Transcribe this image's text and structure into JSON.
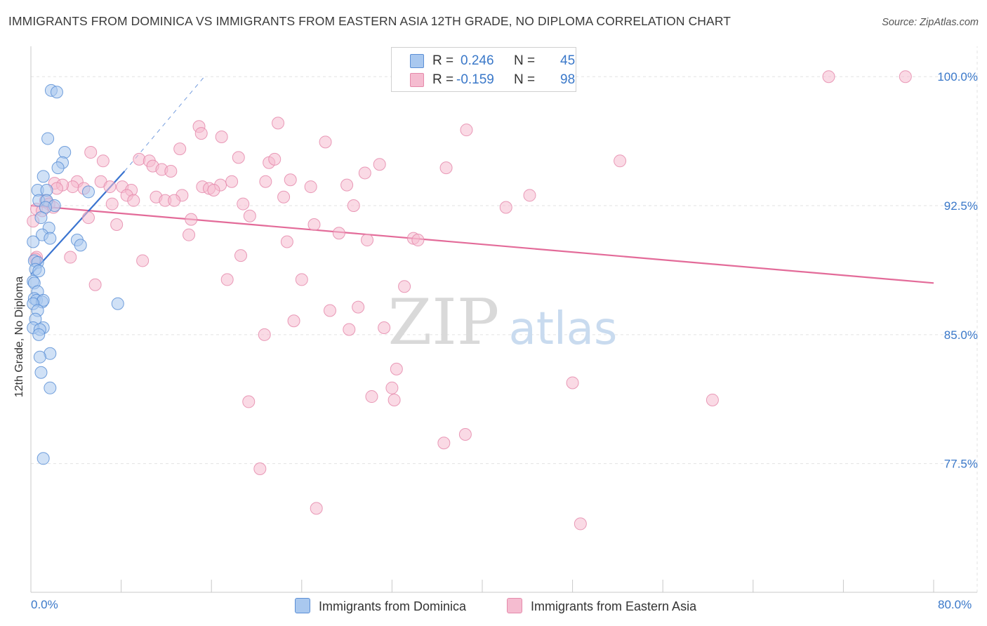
{
  "title": "IMMIGRANTS FROM DOMINICA VS IMMIGRANTS FROM EASTERN ASIA 12TH GRADE, NO DIPLOMA CORRELATION CHART",
  "source": "Source: ZipAtlas.com",
  "watermark": {
    "zip": "ZIP",
    "atlas": "atlas"
  },
  "legend": {
    "r_label": "R = ",
    "n_label": "N = ",
    "rows": [
      {
        "r": "0.246",
        "n": "45"
      },
      {
        "r": "-0.159",
        "n": "98"
      }
    ]
  },
  "colors": {
    "blue_fill": "#a9c8ef",
    "blue_stroke": "#5b8fd6",
    "blue_line": "#3a74d0",
    "pink_fill": "#f5bcd0",
    "pink_stroke": "#e58aab",
    "pink_line": "#e36b99",
    "axis_text": "#3a78c9",
    "grid": "#e3e3e3"
  },
  "chart_data": {
    "type": "scatter",
    "title": "IMMIGRANTS FROM DOMINICA VS IMMIGRANTS FROM EASTERN ASIA 12TH GRADE, NO DIPLOMA CORRELATION CHART",
    "xlabel": "",
    "ylabel": "12th Grade, No Diploma",
    "xlim": [
      0,
      80
    ],
    "ylim": [
      70.1,
      101.6
    ],
    "x_tick_labels": [
      {
        "value": 0,
        "label": "0.0%"
      },
      {
        "value": 80,
        "label": "80.0%"
      }
    ],
    "y_ticks": [
      {
        "value": 77.5,
        "label": "77.5%"
      },
      {
        "value": 85.0,
        "label": "85.0%"
      },
      {
        "value": 92.5,
        "label": "92.5%"
      },
      {
        "value": 100.0,
        "label": "100.0%"
      }
    ],
    "grid": true,
    "legend_position": "bottom",
    "series": [
      {
        "name": "Immigrants from Dominica",
        "color": "#a9c8ef",
        "r": 0.246,
        "n": 45,
        "trend": {
          "x": [
            0.0,
            8.3
          ],
          "y": [
            88.5,
            94.5
          ]
        },
        "trend_extension": {
          "x": [
            8.3,
            15.5
          ],
          "y": [
            94.5,
            100.1
          ]
        },
        "points": [
          [
            1.8,
            99.2
          ],
          [
            2.3,
            99.1
          ],
          [
            1.5,
            96.4
          ],
          [
            3.0,
            95.6
          ],
          [
            2.8,
            95.0
          ],
          [
            2.4,
            94.7
          ],
          [
            1.1,
            94.2
          ],
          [
            0.6,
            93.4
          ],
          [
            1.4,
            93.4
          ],
          [
            5.1,
            93.3
          ],
          [
            0.7,
            92.8
          ],
          [
            1.4,
            92.8
          ],
          [
            2.1,
            92.5
          ],
          [
            1.3,
            92.4
          ],
          [
            0.9,
            91.8
          ],
          [
            1.6,
            91.2
          ],
          [
            1.0,
            90.8
          ],
          [
            1.7,
            90.6
          ],
          [
            4.1,
            90.5
          ],
          [
            4.4,
            90.2
          ],
          [
            0.2,
            90.4
          ],
          [
            0.3,
            89.3
          ],
          [
            0.6,
            89.2
          ],
          [
            0.4,
            88.8
          ],
          [
            0.7,
            88.7
          ],
          [
            0.2,
            88.1
          ],
          [
            0.3,
            88.0
          ],
          [
            0.6,
            87.5
          ],
          [
            0.3,
            87.1
          ],
          [
            0.5,
            87.0
          ],
          [
            1.0,
            86.9
          ],
          [
            1.1,
            87.0
          ],
          [
            0.2,
            86.8
          ],
          [
            7.7,
            86.8
          ],
          [
            0.6,
            86.4
          ],
          [
            0.4,
            85.9
          ],
          [
            1.1,
            85.4
          ],
          [
            0.2,
            85.4
          ],
          [
            0.8,
            85.3
          ],
          [
            0.7,
            85.0
          ],
          [
            1.7,
            83.9
          ],
          [
            0.8,
            83.7
          ],
          [
            0.9,
            82.8
          ],
          [
            1.7,
            81.9
          ],
          [
            1.1,
            77.8
          ]
        ]
      },
      {
        "name": "Immigrants from Eastern Asia",
        "color": "#f5bcd0",
        "r": -0.159,
        "n": 98,
        "trend": {
          "x": [
            0.0,
            80.0
          ],
          "y": [
            92.5,
            88.0
          ]
        },
        "points": [
          [
            38.0,
            100.0
          ],
          [
            43.0,
            100.0
          ],
          [
            70.7,
            100.0
          ],
          [
            77.5,
            100.0
          ],
          [
            21.9,
            97.3
          ],
          [
            14.9,
            97.1
          ],
          [
            15.1,
            96.7
          ],
          [
            16.9,
            96.5
          ],
          [
            38.6,
            96.9
          ],
          [
            26.1,
            96.2
          ],
          [
            5.3,
            95.6
          ],
          [
            13.2,
            95.8
          ],
          [
            6.4,
            95.1
          ],
          [
            9.6,
            95.2
          ],
          [
            10.5,
            95.1
          ],
          [
            18.4,
            95.3
          ],
          [
            21.1,
            95.0
          ],
          [
            21.6,
            95.2
          ],
          [
            30.9,
            94.9
          ],
          [
            36.8,
            94.7
          ],
          [
            52.2,
            95.1
          ],
          [
            10.8,
            94.8
          ],
          [
            11.6,
            94.6
          ],
          [
            12.4,
            94.5
          ],
          [
            29.6,
            94.4
          ],
          [
            2.1,
            93.8
          ],
          [
            4.1,
            93.9
          ],
          [
            6.2,
            93.9
          ],
          [
            7.0,
            93.6
          ],
          [
            8.1,
            93.6
          ],
          [
            3.7,
            93.6
          ],
          [
            2.8,
            93.7
          ],
          [
            2.3,
            93.5
          ],
          [
            4.7,
            93.5
          ],
          [
            15.2,
            93.6
          ],
          [
            16.8,
            93.7
          ],
          [
            17.8,
            93.9
          ],
          [
            20.8,
            93.9
          ],
          [
            23.0,
            94.0
          ],
          [
            24.8,
            93.6
          ],
          [
            28.0,
            93.7
          ],
          [
            8.9,
            93.4
          ],
          [
            15.8,
            93.5
          ],
          [
            16.2,
            93.4
          ],
          [
            8.5,
            93.1
          ],
          [
            11.1,
            93.0
          ],
          [
            13.4,
            93.1
          ],
          [
            22.4,
            93.0
          ],
          [
            44.2,
            93.1
          ],
          [
            1.3,
            92.8
          ],
          [
            1.6,
            92.6
          ],
          [
            2.0,
            92.4
          ],
          [
            9.1,
            92.8
          ],
          [
            11.9,
            92.8
          ],
          [
            12.7,
            92.8
          ],
          [
            7.2,
            92.6
          ],
          [
            18.8,
            92.6
          ],
          [
            28.6,
            92.5
          ],
          [
            42.1,
            92.4
          ],
          [
            0.5,
            92.3
          ],
          [
            1.0,
            92.2
          ],
          [
            19.4,
            91.9
          ],
          [
            5.1,
            91.8
          ],
          [
            14.2,
            91.7
          ],
          [
            7.6,
            91.4
          ],
          [
            25.1,
            91.4
          ],
          [
            0.2,
            91.6
          ],
          [
            27.3,
            90.9
          ],
          [
            14.0,
            90.8
          ],
          [
            29.8,
            90.5
          ],
          [
            33.9,
            90.6
          ],
          [
            34.3,
            90.5
          ],
          [
            22.7,
            90.4
          ],
          [
            0.5,
            89.5
          ],
          [
            3.5,
            89.5
          ],
          [
            9.9,
            89.3
          ],
          [
            18.6,
            89.6
          ],
          [
            0.4,
            89.4
          ],
          [
            17.4,
            88.2
          ],
          [
            24.0,
            88.2
          ],
          [
            5.7,
            87.9
          ],
          [
            33.1,
            87.8
          ],
          [
            26.5,
            86.4
          ],
          [
            29.0,
            86.6
          ],
          [
            23.3,
            85.8
          ],
          [
            28.2,
            85.3
          ],
          [
            31.3,
            85.4
          ],
          [
            20.7,
            85.0
          ],
          [
            32.4,
            83.0
          ],
          [
            48.0,
            82.2
          ],
          [
            32.0,
            81.9
          ],
          [
            60.4,
            81.2
          ],
          [
            30.2,
            81.4
          ],
          [
            32.2,
            81.2
          ],
          [
            19.3,
            81.1
          ],
          [
            38.5,
            79.2
          ],
          [
            36.6,
            78.7
          ],
          [
            20.3,
            77.2
          ],
          [
            25.3,
            74.9
          ],
          [
            48.7,
            74.0
          ]
        ]
      }
    ]
  },
  "bottom_legend": [
    "Immigrants from Dominica",
    "Immigrants from Eastern Asia"
  ],
  "ylabel": "12th Grade, No Diploma"
}
